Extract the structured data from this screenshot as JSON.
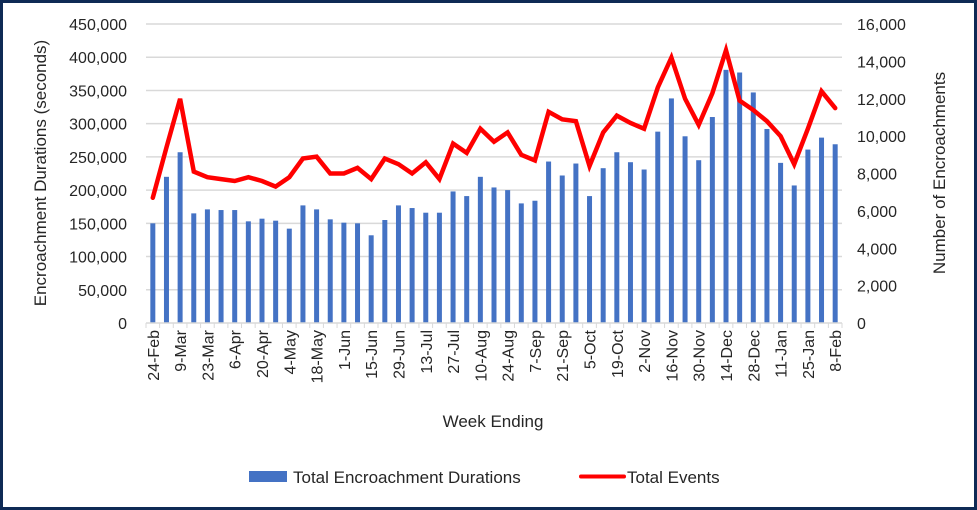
{
  "chart_data": {
    "type": "bar+line",
    "xlabel": "Week Ending",
    "ylabel": "Encroachment Durations (seconds)",
    "y2label": "Number of Encroachments",
    "ylim": [
      0,
      450000
    ],
    "y2lim": [
      0,
      16000
    ],
    "yticks": [
      "0",
      "50,000",
      "100,000",
      "150,000",
      "200,000",
      "250,000",
      "300,000",
      "350,000",
      "400,000",
      "450,000"
    ],
    "y2ticks": [
      "0",
      "2,000",
      "4,000",
      "6,000",
      "8,000",
      "10,000",
      "12,000",
      "14,000",
      "16,000"
    ],
    "ytick_values": [
      0,
      50000,
      100000,
      150000,
      200000,
      250000,
      300000,
      350000,
      400000,
      450000
    ],
    "y2tick_values": [
      0,
      2000,
      4000,
      6000,
      8000,
      10000,
      12000,
      14000,
      16000
    ],
    "grid": true,
    "legend_position": "bottom",
    "x_tick_labels": [
      "24-Feb",
      "9-Mar",
      "23-Mar",
      "6-Apr",
      "20-Apr",
      "4-May",
      "18-May",
      "1-Jun",
      "15-Jun",
      "29-Jun",
      "13-Jul",
      "27-Jul",
      "10-Aug",
      "24-Aug",
      "7-Sep",
      "21-Sep",
      "5-Oct",
      "19-Oct",
      "2-Nov",
      "16-Nov",
      "30-Nov",
      "14-Dec",
      "28-Dec",
      "11-Jan",
      "25-Jan",
      "8-Feb"
    ],
    "x_tick_every": 2,
    "series": [
      {
        "name": "Total Encroachment Durations",
        "type": "bar",
        "axis": "left",
        "color": "#4472c4",
        "values": [
          150000,
          220000,
          257000,
          165000,
          171000,
          170000,
          170000,
          153000,
          157000,
          154000,
          142000,
          177000,
          171000,
          156000,
          151000,
          150000,
          132000,
          155000,
          177000,
          173000,
          166000,
          166000,
          198000,
          191000,
          220000,
          204000,
          200000,
          180000,
          184000,
          243000,
          222000,
          240000,
          191000,
          233000,
          257000,
          242000,
          231000,
          288000,
          338000,
          281000,
          245000,
          310000,
          381000,
          377000,
          347000,
          292000,
          241000,
          207000,
          261000,
          279000,
          269000
        ]
      },
      {
        "name": "Total Events",
        "type": "line",
        "axis": "right",
        "color": "#ff0000",
        "values": [
          6700,
          9400,
          12000,
          8100,
          7800,
          7700,
          7600,
          7800,
          7600,
          7300,
          7800,
          8800,
          8900,
          8000,
          8000,
          8300,
          7700,
          8800,
          8500,
          8000,
          8600,
          7700,
          9600,
          9100,
          10400,
          9700,
          10200,
          9000,
          8700,
          11300,
          10900,
          10800,
          8400,
          10200,
          11100,
          10700,
          10400,
          12600,
          14200,
          12000,
          10600,
          12300,
          14600,
          11900,
          11400,
          10800,
          10000,
          8500,
          10400,
          12400,
          11500
        ]
      }
    ]
  }
}
